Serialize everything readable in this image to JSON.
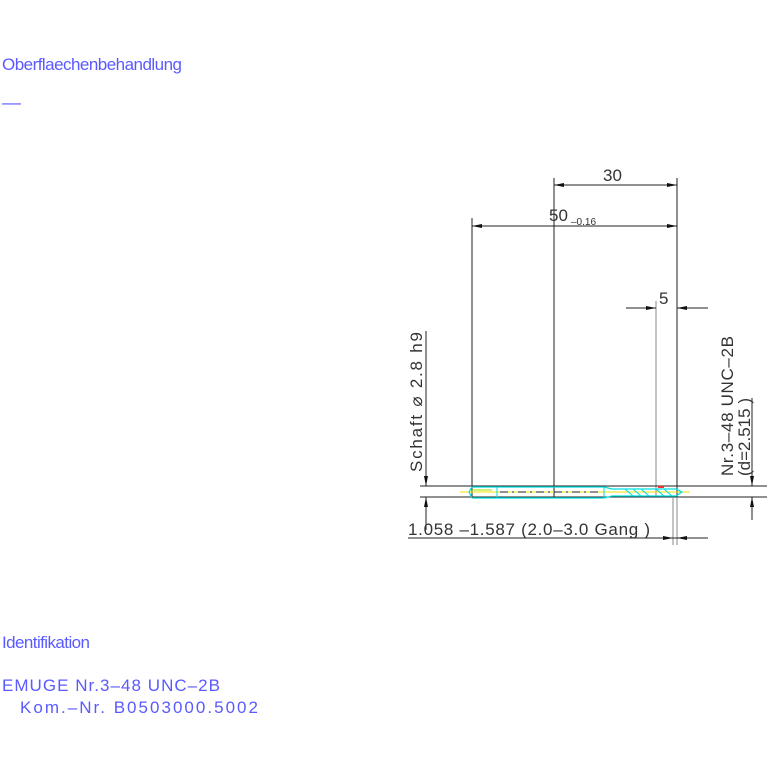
{
  "header": {
    "surface_label": "Oberflaechenbehandlung",
    "surface_value": "––"
  },
  "identification": {
    "label": "Identifikation",
    "line1": "EMUGE    Nr.3–48  UNC–2B",
    "line2": "Kom.–Nr.       B0503000.5002"
  },
  "drawing": {
    "dim_30": "30",
    "dim_50": "50",
    "dim_50_tolerance": "–0.16",
    "dim_5": "5",
    "shank_label": "Schaft  ⌀ 2.8  h9",
    "thread_label": "Nr.3–48  UNC–2B",
    "thread_diameter": "(d=2.515  )",
    "chamfer_label": "1.058  –1.587 (2.0–3.0  Gang   )",
    "colors": {
      "text": "#5a5aff",
      "tool_outline": "#00e0e0",
      "centerline": "#f0e000",
      "marker": "#ff3030"
    }
  }
}
